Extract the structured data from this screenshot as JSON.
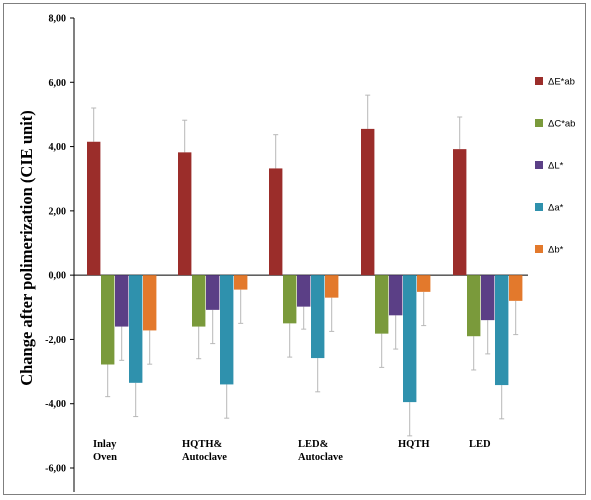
{
  "chart_data": {
    "type": "bar",
    "ylabel": "Change after polimerization (CIE unit)",
    "ylim": [
      -6,
      8
    ],
    "yticks": [
      8,
      6,
      4,
      2,
      0,
      -2,
      -4,
      -6
    ],
    "ytick_labels": [
      "8,00",
      "6,00",
      "4,00",
      "2,00",
      "0,00",
      "-2,00",
      "-4,00",
      "-6,00"
    ],
    "categories": [
      "Inlay\nOven",
      "HQTH&\nAutoclave",
      "LED&\nAutoclave",
      "HQTH",
      "LED"
    ],
    "legend_position": "right",
    "error_bars": true,
    "series": [
      {
        "name": "ΔE*ab",
        "color": "#9b2d2a",
        "values": [
          4.15,
          3.82,
          3.32,
          4.55,
          3.92
        ],
        "errors": [
          1.05,
          1.0,
          1.05,
          1.05,
          1.0
        ]
      },
      {
        "name": "ΔC*ab",
        "color": "#7a9a3b",
        "values": [
          -2.78,
          -1.6,
          -1.5,
          -1.82,
          -1.9
        ],
        "errors": [
          1.0,
          1.0,
          1.05,
          1.05,
          1.05
        ]
      },
      {
        "name": "ΔL*",
        "color": "#5b3f86",
        "values": [
          -1.6,
          -1.08,
          -0.98,
          -1.25,
          -1.4
        ],
        "errors": [
          1.05,
          1.05,
          0.7,
          1.05,
          1.05
        ]
      },
      {
        "name": "Δa*",
        "color": "#2f91ad",
        "values": [
          -3.35,
          -3.4,
          -2.58,
          -3.95,
          -3.42
        ],
        "errors": [
          1.05,
          1.05,
          1.05,
          1.05,
          1.05
        ]
      },
      {
        "name": "Δb*",
        "color": "#e3792c",
        "values": [
          -1.72,
          -0.45,
          -0.7,
          -0.52,
          -0.8
        ],
        "errors": [
          1.05,
          1.05,
          1.05,
          1.05,
          1.05
        ]
      }
    ]
  }
}
